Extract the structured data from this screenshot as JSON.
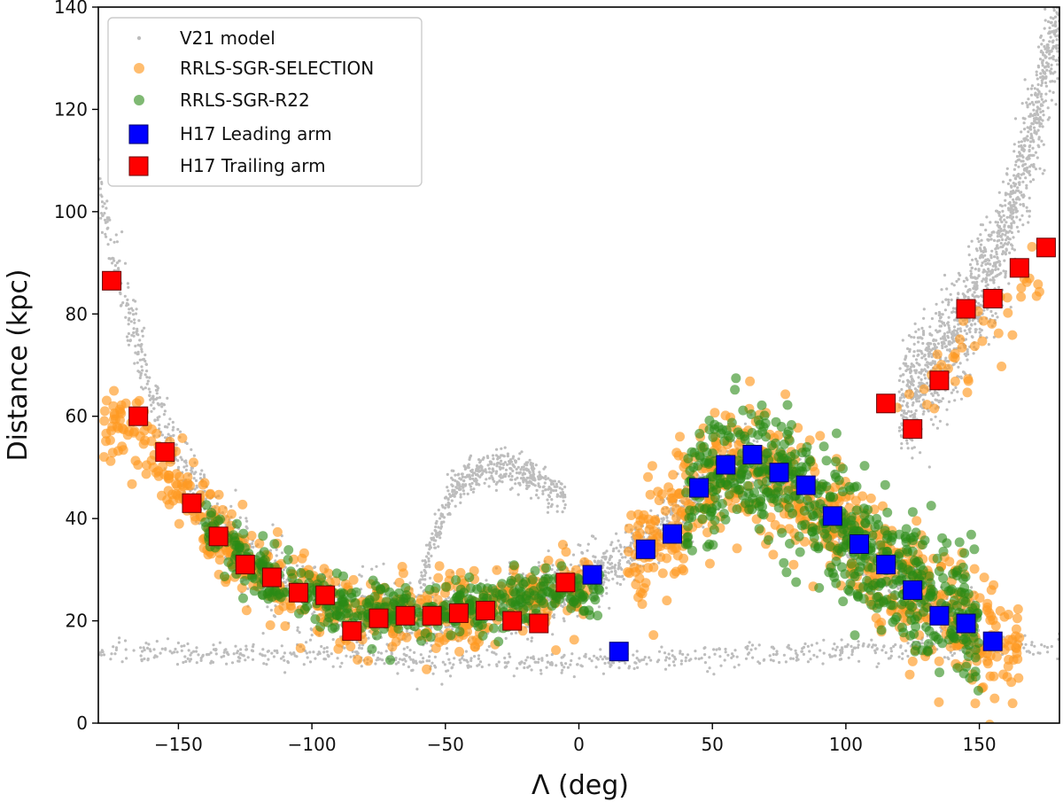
{
  "chart_data": {
    "type": "scatter",
    "xlabel": "Λ (deg)",
    "ylabel": "Distance (kpc)",
    "xlim": [
      -180,
      180
    ],
    "ylim": [
      0,
      140
    ],
    "x_ticks": [
      -150,
      -100,
      -50,
      0,
      50,
      100,
      150
    ],
    "x_tick_labels": [
      "−150",
      "−100",
      "−50",
      "0",
      "50",
      "100",
      "150"
    ],
    "y_ticks": [
      0,
      20,
      40,
      60,
      80,
      100,
      120,
      140
    ],
    "y_tick_labels": [
      "0",
      "20",
      "40",
      "60",
      "80",
      "100",
      "120",
      "140"
    ],
    "grid": false,
    "legend_position": "top-left",
    "colors": {
      "model": "#bdbdbd",
      "selection": "#ff9a22",
      "r22": "#2a8a16",
      "leading": "#0000ff",
      "trailing": "#ff0000"
    },
    "series": [
      {
        "name": "V21 model",
        "marker": "point",
        "description_bands": [
          {
            "from": -180,
            "to": 0,
            "center_curve": [
              [
                -180,
                105
              ],
              [
                -170,
                82
              ],
              [
                -160,
                64
              ],
              [
                -150,
                52
              ],
              [
                -140,
                43
              ],
              [
                -130,
                36
              ],
              [
                -120,
                31
              ],
              [
                -110,
                27
              ],
              [
                -100,
                24
              ],
              [
                -90,
                22
              ],
              [
                -80,
                21
              ],
              [
                -70,
                20.5
              ],
              [
                -60,
                20.5
              ],
              [
                -50,
                21
              ],
              [
                -40,
                21.5
              ],
              [
                -30,
                22.5
              ],
              [
                -20,
                24
              ],
              [
                -10,
                26
              ],
              [
                0,
                28
              ]
            ],
            "spread": 6
          },
          {
            "from": -60,
            "to": -5,
            "center_curve": [
              [
                -60,
                25
              ],
              [
                -55,
                35
              ],
              [
                -48,
                45
              ],
              [
                -40,
                49
              ],
              [
                -30,
                50
              ],
              [
                -20,
                49
              ],
              [
                -10,
                46
              ],
              [
                -5,
                44
              ]
            ],
            "spread": 3
          },
          {
            "from": 0,
            "to": 150,
            "center_curve": [
              [
                0,
                30
              ],
              [
                10,
                30
              ],
              [
                20,
                33
              ],
              [
                30,
                37
              ],
              [
                40,
                43
              ],
              [
                50,
                48
              ],
              [
                60,
                50
              ],
              [
                70,
                50
              ],
              [
                80,
                47
              ],
              [
                90,
                42
              ],
              [
                100,
                37
              ],
              [
                110,
                32
              ],
              [
                120,
                28
              ],
              [
                130,
                24
              ],
              [
                140,
                21
              ],
              [
                150,
                18
              ],
              [
                160,
                16
              ],
              [
                170,
                15
              ]
            ],
            "spread": 5
          },
          {
            "from": 120,
            "to": 180,
            "center_curve": [
              [
                120,
                62
              ],
              [
                130,
                68
              ],
              [
                140,
                75
              ],
              [
                150,
                84
              ],
              [
                160,
                96
              ],
              [
                170,
                115
              ],
              [
                178,
                135
              ]
            ],
            "spread": 10
          },
          {
            "from": -180,
            "to": 180,
            "center_curve": [
              [
                -180,
                14
              ],
              [
                -100,
                13
              ],
              [
                -50,
                12
              ],
              [
                0,
                12
              ],
              [
                50,
                13
              ],
              [
                100,
                14
              ],
              [
                180,
                15
              ]
            ],
            "spread": 2
          }
        ]
      },
      {
        "name": "RRLS-SGR-SELECTION",
        "marker": "circle"
      },
      {
        "name": "RRLS-SGR-R22",
        "marker": "circle"
      },
      {
        "name": "H17 Leading arm",
        "marker": "square",
        "x": [
          5,
          15,
          25,
          35,
          45,
          55,
          65,
          75,
          85,
          95,
          105,
          115,
          125,
          135,
          145,
          155
        ],
        "y": [
          29,
          14,
          34,
          37,
          46,
          50.5,
          52.5,
          49,
          46.5,
          40.5,
          35,
          31,
          26,
          21,
          19.5,
          16
        ]
      },
      {
        "name": "H17 Trailing arm",
        "marker": "square",
        "x": [
          -175,
          -165,
          -155,
          -145,
          -135,
          -125,
          -115,
          -105,
          -95,
          -85,
          -75,
          -65,
          -55,
          -45,
          -35,
          -25,
          -15,
          -5,
          115,
          125,
          135,
          145,
          155,
          165,
          175
        ],
        "y": [
          86.5,
          60,
          53,
          43,
          36.5,
          31,
          28.5,
          25.5,
          25,
          18,
          20.5,
          21,
          21,
          21.5,
          22,
          20,
          19.5,
          27.5,
          62.5,
          57.5,
          67,
          81,
          83,
          89,
          93
        ]
      }
    ]
  }
}
